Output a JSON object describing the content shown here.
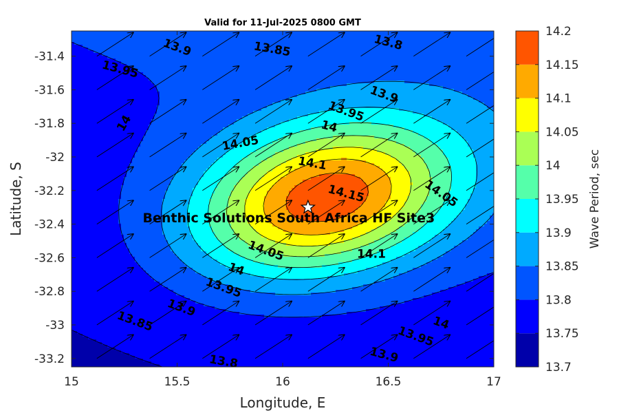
{
  "chart_data": {
    "type": "heatmap",
    "title": "Valid for 11-Jul-2025 0800 GMT",
    "xlabel": "Longitude, E",
    "ylabel": "Latitude, S",
    "colorbar_label": "Wave Period, sec",
    "xlim": [
      15,
      17
    ],
    "ylim": [
      -33.25,
      -31.25
    ],
    "x_ticks": [
      15,
      15.5,
      16,
      16.5,
      17
    ],
    "x_tick_labels": [
      "15",
      "15.5",
      "16",
      "16.5",
      "17"
    ],
    "y_ticks": [
      -31.4,
      -31.6,
      -31.8,
      -32,
      -32.2,
      -32.4,
      -32.6,
      -32.8,
      -33,
      -33.2
    ],
    "y_tick_labels": [
      "-31.4",
      "-31.6",
      "-31.8",
      "-32",
      "-32.2",
      "-32.4",
      "-32.6",
      "-32.8",
      "-33",
      "-33.2"
    ],
    "colorbar_range": [
      13.7,
      14.2
    ],
    "colorbar_ticks": [
      "13.7",
      "13.75",
      "13.8",
      "13.85",
      "13.9",
      "13.95",
      "14",
      "14.05",
      "14.1",
      "14.15",
      "14.2"
    ],
    "levels": [
      13.7,
      13.75,
      13.8,
      13.85,
      13.9,
      13.95,
      14.0,
      14.05,
      14.1,
      14.15,
      14.2
    ],
    "level_colors": [
      "#0000aa",
      "#0000ff",
      "#0055ff",
      "#00aaff",
      "#00ffff",
      "#55ffaa",
      "#aaff55",
      "#ffff00",
      "#ffaa00",
      "#ff5500"
    ],
    "field_center": {
      "lon": 16.2,
      "lat": -32.25,
      "peak": 14.19
    },
    "field_background": {
      "value": 13.7,
      "slope_y_per_x": 0.5
    },
    "vector_direction_deg": 33,
    "vector_grid_lon": [
      15.12,
      15.37,
      15.62,
      15.87,
      16.12,
      16.37,
      16.62,
      16.87
    ],
    "vector_grid_lat": [
      -31.4,
      -31.6,
      -31.8,
      -32.0,
      -32.2,
      -32.4,
      -32.6,
      -32.8,
      -33.0,
      -33.2
    ],
    "contour_labels": [
      {
        "text": "13.9",
        "lon": 15.5,
        "lat": -31.35,
        "angle": 20
      },
      {
        "text": "13.85",
        "lon": 15.95,
        "lat": -31.36,
        "angle": 10
      },
      {
        "text": "13.8",
        "lon": 16.5,
        "lat": -31.32,
        "angle": 15
      },
      {
        "text": "13.95",
        "lon": 15.23,
        "lat": -31.48,
        "angle": 15
      },
      {
        "text": "13.9",
        "lon": 16.48,
        "lat": -31.63,
        "angle": 20
      },
      {
        "text": "13.95",
        "lon": 16.3,
        "lat": -31.73,
        "angle": 20
      },
      {
        "text": "14",
        "lon": 15.25,
        "lat": -31.8,
        "angle": -60
      },
      {
        "text": "14",
        "lon": 16.22,
        "lat": -31.82,
        "angle": 15
      },
      {
        "text": "14.05",
        "lon": 15.8,
        "lat": -31.92,
        "angle": -10
      },
      {
        "text": "14.1",
        "lon": 16.14,
        "lat": -32.04,
        "angle": 10
      },
      {
        "text": "14.15",
        "lon": 16.3,
        "lat": -32.22,
        "angle": 15
      },
      {
        "text": "14.05",
        "lon": 16.75,
        "lat": -32.22,
        "angle": 35
      },
      {
        "text": "14.1",
        "lon": 16.42,
        "lat": -32.58,
        "angle": 0
      },
      {
        "text": "14.05",
        "lon": 15.92,
        "lat": -32.56,
        "angle": 20
      },
      {
        "text": "14",
        "lon": 15.78,
        "lat": -32.67,
        "angle": 20
      },
      {
        "text": "13.95",
        "lon": 15.72,
        "lat": -32.78,
        "angle": 20
      },
      {
        "text": "13.9",
        "lon": 15.52,
        "lat": -32.9,
        "angle": 20
      },
      {
        "text": "13.85",
        "lon": 15.3,
        "lat": -32.98,
        "angle": 20
      },
      {
        "text": "14",
        "lon": 16.75,
        "lat": -32.99,
        "angle": 20
      },
      {
        "text": "13.95",
        "lon": 16.63,
        "lat": -33.07,
        "angle": 20
      },
      {
        "text": "13.9",
        "lon": 16.48,
        "lat": -33.18,
        "angle": 15
      },
      {
        "text": "13.8",
        "lon": 15.72,
        "lat": -33.22,
        "angle": 10
      }
    ],
    "site": {
      "label": "Benthic Solutions South Africa HF Site3",
      "lon": 16.12,
      "lat": -32.3
    }
  }
}
